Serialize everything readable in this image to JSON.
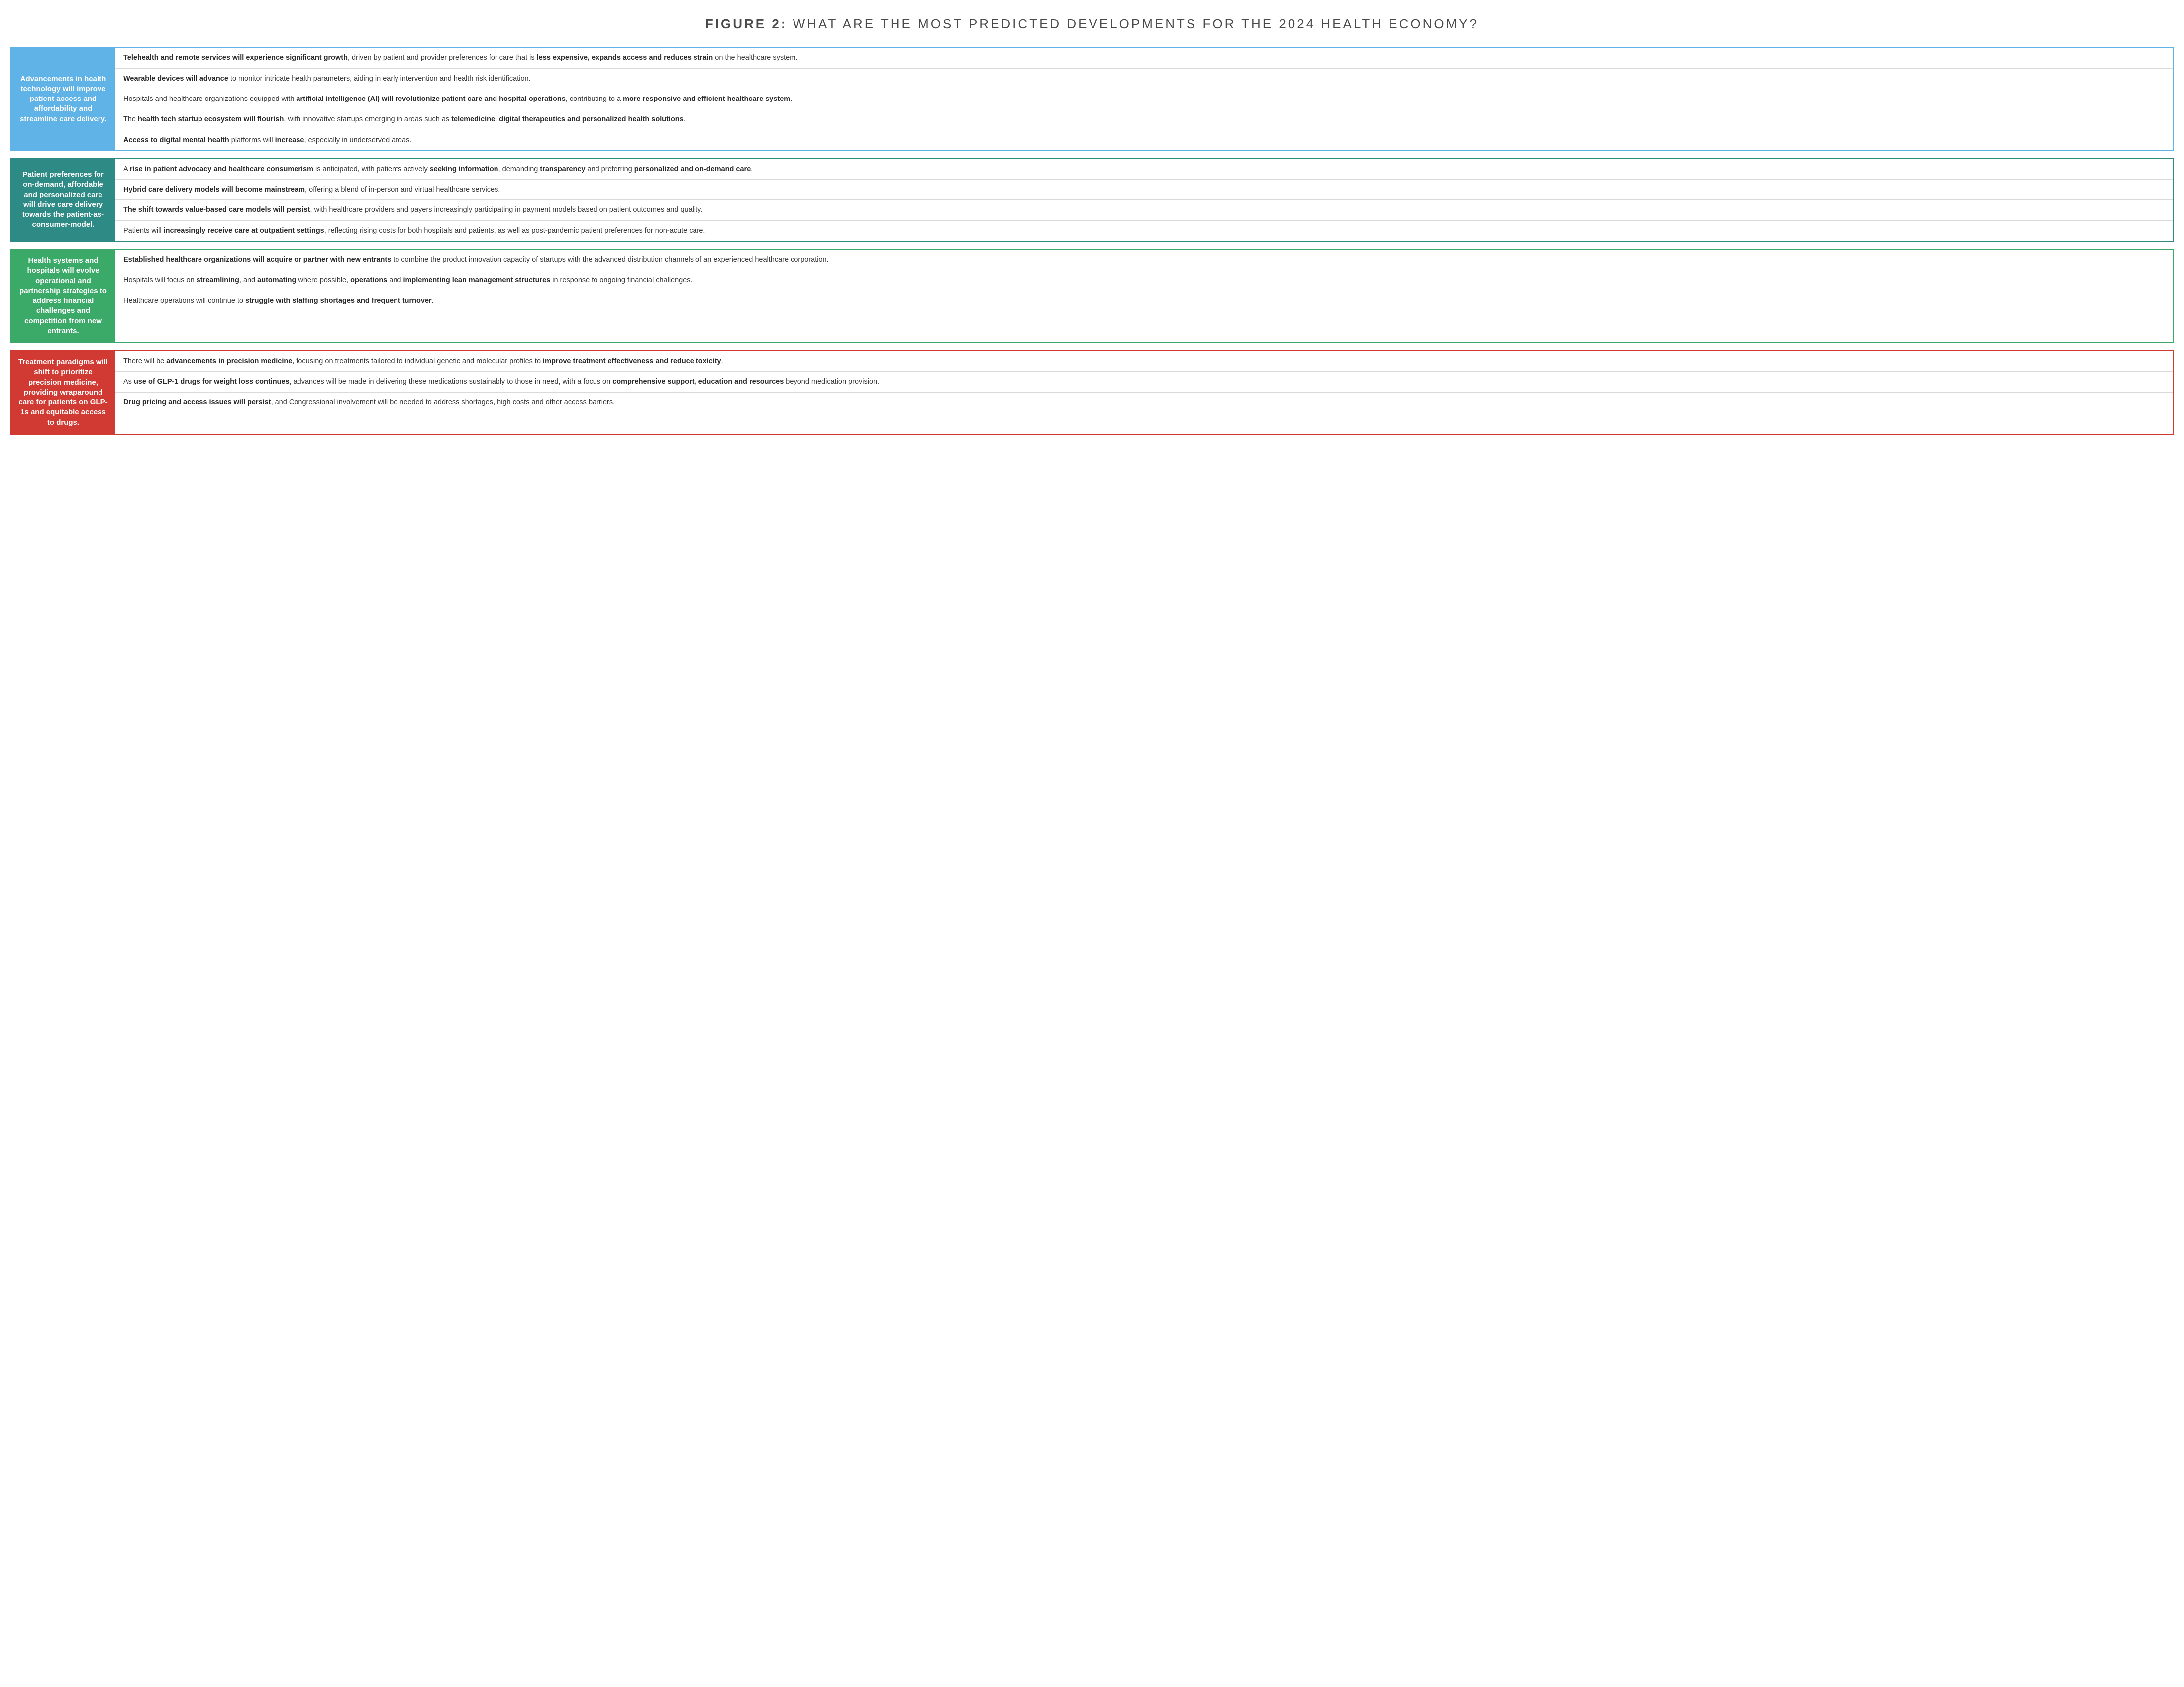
{
  "title_label": "FIGURE 2:",
  "title_rest": " WHAT ARE THE MOST PREDICTED DEVELOPMENTS FOR THE 2024 HEALTH ECONOMY?",
  "sections": [
    {
      "color": "#5fb3e6",
      "border": "#5fb3e6",
      "label": "Advancements in health technology will improve patient access and affordability and streamline care delivery.",
      "rows": [
        "<strong>Telehealth and remote services will experience significant growth</strong>, driven by patient and provider preferences for care that is <strong>less expensive, expands access and reduces strain</strong> on the healthcare system.",
        "<strong>Wearable devices will advance</strong> to monitor intricate health parameters, aiding in early intervention and health risk identification.",
        "Hospitals and healthcare organizations equipped with <strong>artificial intelligence (AI) will revolutionize patient care and hospital operations</strong>, contributing to a <strong>more responsive and efficient healthcare system</strong>.",
        "The <strong>health tech startup ecosystem will flourish</strong>, with innovative startups emerging in areas such as <strong>telemedicine, digital therapeutics and personalized health solutions</strong>.",
        "<strong>Access to digital mental health</strong> platforms will <strong>increase</strong>, especially in underserved areas."
      ]
    },
    {
      "color": "#2d8a84",
      "border": "#2d8a84",
      "label": "Patient preferences for on-demand, affordable and personalized care will drive care delivery towards the patient-as-consumer-model.",
      "rows": [
        "A <strong>rise in patient advocacy and healthcare consumerism</strong> is anticipated, with patients actively <strong>seeking information</strong>, demanding <strong>transparency</strong> and preferring <strong>personalized and on-demand care</strong>.",
        "<strong>Hybrid care delivery models will become mainstream</strong>, offering a blend of in-person and virtual healthcare services.",
        "<strong>The shift towards value-based care models will persist</strong>, with healthcare providers and payers increasingly participating in payment models based on patient outcomes and quality.",
        "Patients will <strong>increasingly receive care at outpatient settings</strong>, reflecting rising costs for both hospitals and patients, as well as post-pandemic patient preferences for non-acute care."
      ]
    },
    {
      "color": "#3ba968",
      "border": "#3ba968",
      "label": "Health systems and hospitals will evolve operational and partnership strategies to address financial challenges and competition from new entrants.",
      "rows": [
        "<strong>Established healthcare organizations will acquire or partner with new entrants</strong> to combine the product innovation capacity of startups with the advanced distribution channels of an experienced healthcare corporation.",
        "Hospitals will focus on <strong>streamlining</strong>, and <strong>automating</strong> where possible, <strong>operations</strong> and <strong>implementing lean management structures</strong> in response to ongoing financial challenges.",
        "Healthcare operations will continue to <strong>struggle with staffing shortages and frequent turnover</strong>."
      ]
    },
    {
      "color": "#d13a32",
      "border": "#d13a32",
      "label": "Treatment paradigms will shift to prioritize precision medicine, providing wraparound care for patients on GLP-1s and equitable access to drugs.",
      "rows": [
        "There will be <strong>advancements in precision medicine</strong>, focusing on treatments tailored to individual genetic and molecular profiles to <strong>improve treatment effectiveness and reduce toxicity</strong>.",
        "As <strong>use of GLP-1 drugs for weight loss continues</strong>, advances will be made in delivering these medications sustainably to those in need, with a focus on <strong>comprehensive support, education and resources</strong> beyond medication provision.",
        "<strong>Drug pricing and access issues will persist</strong>, and Congressional involvement will be needed to address shortages, high costs and other access barriers."
      ]
    }
  ]
}
